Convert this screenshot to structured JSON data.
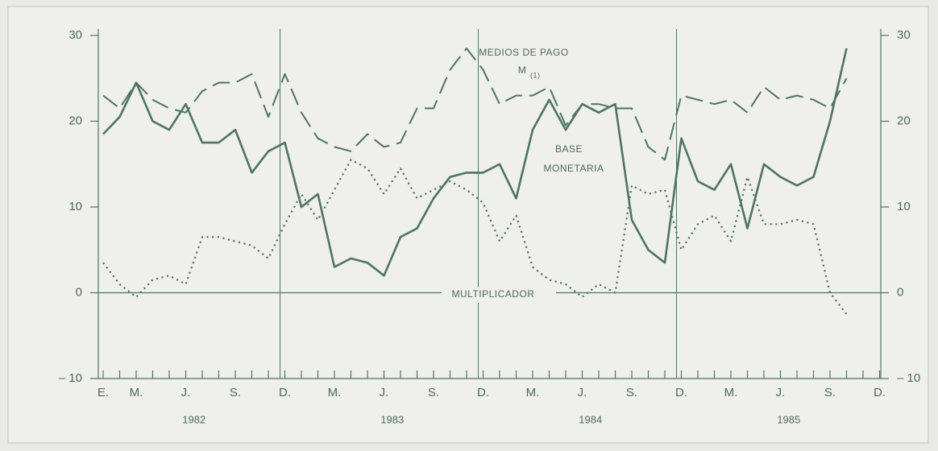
{
  "chart_data": {
    "type": "line",
    "categories": [
      "E.",
      null,
      "M.",
      null,
      null,
      "J.",
      null,
      null,
      "S.",
      null,
      null,
      "D.",
      null,
      null,
      "M.",
      null,
      null,
      "J.",
      null,
      null,
      "S.",
      null,
      null,
      "D.",
      null,
      null,
      "M.",
      null,
      null,
      "J.",
      null,
      null,
      "S.",
      null,
      null,
      "D.",
      null,
      null,
      "M.",
      null,
      null,
      "J.",
      null,
      null,
      "S.",
      null,
      null,
      "D."
    ],
    "years": [
      "1982",
      "1983",
      "1984",
      "1985"
    ],
    "ylim": [
      -10,
      30
    ],
    "yticks": [
      {
        "value": -10,
        "label": "– 10"
      },
      0,
      10,
      20,
      30
    ],
    "annotations": [
      "MEDIOS DE PAGO",
      "M",
      "(1)",
      "BASE",
      "MONETARIA",
      "MULTIPLICADOR"
    ],
    "series": [
      {
        "name": "MEDIOS DE PAGO",
        "color": "#4d7563",
        "style": "dashed",
        "values": [
          23,
          21.5,
          24.5,
          22.5,
          21.5,
          21,
          23.5,
          24.5,
          24.5,
          25.5,
          20.5,
          25.5,
          21,
          18,
          17,
          16.5,
          18.5,
          17,
          17.5,
          21.5,
          21.5,
          26,
          28.5,
          26,
          22,
          23,
          23,
          24,
          19.5,
          22,
          22,
          21.5,
          21.5,
          17,
          15.5,
          23,
          22.5,
          22,
          22.5,
          21,
          24,
          22.5,
          23,
          22.5,
          21.5,
          25,
          null,
          null
        ]
      },
      {
        "name": "BASE MONETARIA",
        "color": "#4d7563",
        "style": "solid",
        "values": [
          18.5,
          20.5,
          24.5,
          20,
          19,
          22,
          17.5,
          17.5,
          19,
          14,
          16.5,
          17.5,
          10,
          11.5,
          3,
          4,
          3.5,
          2,
          6.5,
          7.5,
          11,
          13.5,
          14,
          14,
          15,
          11,
          19,
          22.5,
          19,
          22,
          21,
          22,
          8.5,
          5,
          3.5,
          18,
          13,
          12,
          15,
          7.5,
          15,
          13.5,
          12.5,
          13.5,
          20,
          28.5,
          null,
          null
        ]
      },
      {
        "name": "MULTIPLICADOR",
        "color": "#4d7563",
        "style": "dotted",
        "values": [
          3.5,
          1,
          -0.5,
          1.5,
          2,
          1,
          6.5,
          6.5,
          6,
          5.5,
          4,
          8,
          11.5,
          8.5,
          12,
          15.5,
          14.5,
          11.5,
          14.5,
          11,
          12,
          13,
          12,
          10.5,
          6,
          9,
          3,
          1.5,
          1,
          -0.5,
          1,
          0,
          12.5,
          11.5,
          12,
          5,
          8,
          9,
          6,
          13.5,
          8,
          8,
          8.5,
          8,
          0,
          -2.5,
          null,
          null
        ]
      }
    ]
  }
}
